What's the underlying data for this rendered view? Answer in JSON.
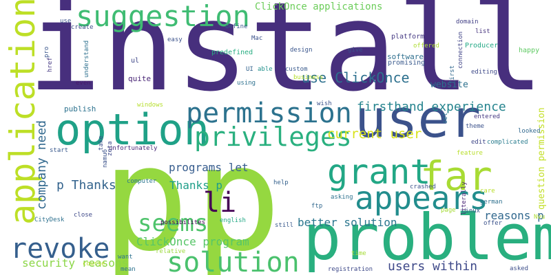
{
  "cloud": {
    "background": "#ffffff",
    "words": [
      {
        "text": "install",
        "color": "#472f7d"
      },
      {
        "text": "p",
        "color": "#95d840"
      },
      {
        "text": "p",
        "color": "#95d840"
      },
      {
        "text": "problem",
        "color": "#29af7f"
      },
      {
        "text": "user",
        "color": "#3b528b"
      },
      {
        "text": "option",
        "color": "#1fa187"
      },
      {
        "text": "suggestion",
        "color": "#3fbc73"
      },
      {
        "text": "applications",
        "color": "#bddf26"
      },
      {
        "text": "far",
        "color": "#a8db34"
      },
      {
        "text": "grant",
        "color": "#22a785"
      },
      {
        "text": "appears",
        "color": "#228d8d"
      },
      {
        "text": "permission",
        "color": "#2c728e"
      },
      {
        "text": "privileges",
        "color": "#2ab07f"
      },
      {
        "text": "solution",
        "color": "#4ac16d"
      },
      {
        "text": "revoke",
        "color": "#355f8d"
      },
      {
        "text": "seems",
        "color": "#4ec36b"
      },
      {
        "text": "li",
        "color": "#440154"
      },
      {
        "text": "use ClickOnce",
        "color": "#2d708e"
      },
      {
        "text": "firsthand experience",
        "color": "#25848e"
      },
      {
        "text": "current user",
        "color": "#d8e219"
      },
      {
        "text": "company need",
        "color": "#31688e"
      },
      {
        "text": "p Thanks",
        "color": "#33638d"
      },
      {
        "text": "programs let",
        "color": "#365c8d"
      },
      {
        "text": "Thanks p",
        "color": "#1f9e89"
      },
      {
        "text": "better solution",
        "color": "#2a768e"
      },
      {
        "text": "reasons p",
        "color": "#31688e"
      },
      {
        "text": "ClickOnce program",
        "color": "#56c667"
      },
      {
        "text": "users within",
        "color": "#3e4989"
      },
      {
        "text": "security reasons",
        "color": "#8bd646"
      },
      {
        "text": "question permission",
        "color": "#c2df23"
      },
      {
        "text": "ClickOnce applications",
        "color": "#6ccd5a"
      },
      {
        "text": "website",
        "color": "#2c718e"
      },
      {
        "text": "software",
        "color": "#2e6f8e"
      },
      {
        "text": "platform",
        "color": "#443983"
      },
      {
        "text": "Producer",
        "color": "#22a884"
      },
      {
        "text": "Mac",
        "color": "#3b528b"
      },
      {
        "text": "define",
        "color": "#39568c"
      },
      {
        "text": "easy",
        "color": "#3b528b"
      },
      {
        "text": "ul",
        "color": "#3f4788"
      },
      {
        "text": "quite",
        "color": "#482475"
      },
      {
        "text": "even",
        "color": "#48186a"
      },
      {
        "text": "publish",
        "color": "#2c728e"
      },
      {
        "text": "promising",
        "color": "#38598c"
      },
      {
        "text": "design",
        "color": "#39558c"
      },
      {
        "text": "give",
        "color": "#3b528b"
      },
      {
        "text": "offered",
        "color": "#addc30"
      },
      {
        "text": "custom",
        "color": "#38598c"
      },
      {
        "text": "able",
        "color": "#21918c"
      },
      {
        "text": "UI",
        "color": "#33638d"
      },
      {
        "text": "using",
        "color": "#2d708e"
      },
      {
        "text": "business",
        "color": "#b5de2b"
      },
      {
        "text": "predefined",
        "color": "#27ad81"
      },
      {
        "text": "domain",
        "color": "#424086"
      },
      {
        "text": "list",
        "color": "#46337e"
      },
      {
        "text": "connection",
        "color": "#414487"
      },
      {
        "text": "first",
        "color": "#31688e"
      },
      {
        "text": "editing",
        "color": "#3e4989"
      },
      {
        "text": "happy",
        "color": "#5ec962"
      },
      {
        "text": "create",
        "color": "#3d4e8a"
      },
      {
        "text": "use",
        "color": "#3b528b"
      },
      {
        "text": "pro",
        "color": "#39568c"
      },
      {
        "text": "understand",
        "color": "#2d708e"
      },
      {
        "text": "href",
        "color": "#453882"
      },
      {
        "text": "windows",
        "color": "#b5de2b"
      },
      {
        "text": "wish",
        "color": "#3b528b"
      },
      {
        "text": "entered",
        "color": "#453882"
      },
      {
        "text": "set",
        "color": "#2c728e"
      },
      {
        "text": "theme",
        "color": "#3b528b"
      },
      {
        "text": "edit",
        "color": "#3f4788"
      },
      {
        "text": "complicated",
        "color": "#287c8e"
      },
      {
        "text": "looked",
        "color": "#31688e"
      },
      {
        "text": "feature",
        "color": "#b8de29"
      },
      {
        "text": "start",
        "color": "#38588c"
      },
      {
        "text": "take",
        "color": "#3d4e8a"
      },
      {
        "text": "unfortunately",
        "color": "#482878"
      },
      {
        "text": "zeta",
        "color": "#3e4989"
      },
      {
        "text": "namu6",
        "color": "#3b528b"
      },
      {
        "text": "computer",
        "color": "#2a768e"
      },
      {
        "text": "help",
        "color": "#34618d"
      },
      {
        "text": "crashed",
        "color": "#3b528b"
      },
      {
        "text": "care",
        "color": "#b8de29"
      },
      {
        "text": "german",
        "color": "#2d708e"
      },
      {
        "text": "Linux",
        "color": "#38598c"
      },
      {
        "text": "Nvu",
        "color": "#addc30"
      },
      {
        "text": "page",
        "color": "#a5db36"
      },
      {
        "text": "literally",
        "color": "#482475"
      },
      {
        "text": "offer",
        "color": "#3b528b"
      },
      {
        "text": "possibilites",
        "color": "#440154"
      },
      {
        "text": "asking",
        "color": "#2c728e"
      },
      {
        "text": "ftp",
        "color": "#31688e"
      },
      {
        "text": "close",
        "color": "#3e4989"
      },
      {
        "text": "CityDesk",
        "color": "#2d708e"
      },
      {
        "text": "english",
        "color": "#22a884"
      },
      {
        "text": "still",
        "color": "#38598c"
      },
      {
        "text": "relative",
        "color": "#9bd93c"
      },
      {
        "text": "want",
        "color": "#2c728e"
      },
      {
        "text": "course",
        "color": "#b5de2b"
      },
      {
        "text": "mean",
        "color": "#2c728e"
      },
      {
        "text": "time",
        "color": "#a5db36"
      },
      {
        "text": "registration",
        "color": "#3e4989"
      },
      {
        "text": "asked",
        "color": "#3d4e8a"
      }
    ]
  }
}
